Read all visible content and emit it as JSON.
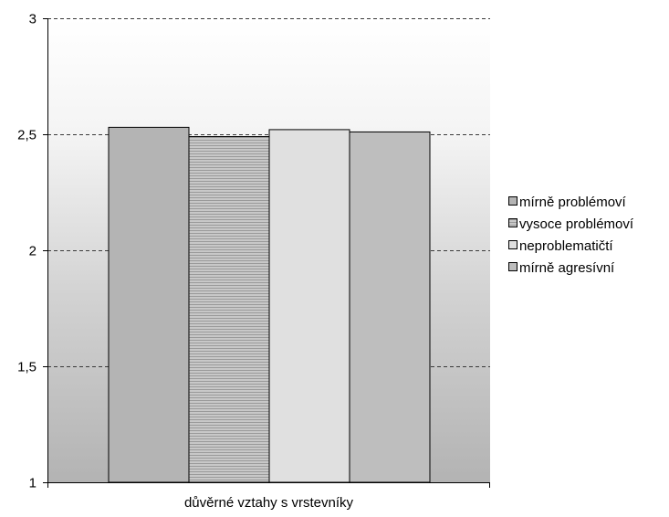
{
  "chart_data": {
    "type": "bar",
    "title": "",
    "xlabel": "",
    "ylabel": "",
    "categories": [
      "důvěrné vztahy s vrstevníky"
    ],
    "series": [
      {
        "name": "mírně problémoví",
        "values": [
          2.53
        ],
        "color": "#b4b4b4",
        "pattern": "solid"
      },
      {
        "name": "vysoce problémoví",
        "values": [
          2.49
        ],
        "color": "#bcbcbc",
        "pattern": "horizontal-lines"
      },
      {
        "name": "neproblematičtí",
        "values": [
          2.52
        ],
        "color": "#e0e0e0",
        "pattern": "solid"
      },
      {
        "name": "mírně agresívní",
        "values": [
          2.51
        ],
        "color": "#bebebe",
        "pattern": "solid"
      }
    ],
    "ylim": [
      1,
      3
    ],
    "yticks": [
      1,
      1.5,
      2,
      2.5,
      3
    ],
    "ytick_labels": [
      "1",
      "1,5",
      "2",
      "2,5",
      "3"
    ],
    "grid": true,
    "legend_position": "right",
    "plot_background": "gradient white-to-gray"
  }
}
